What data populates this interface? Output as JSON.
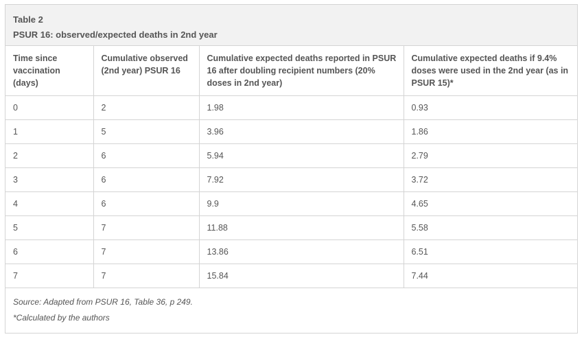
{
  "table": {
    "caption_line1": "Table 2",
    "caption_line2": "PSUR 16: observed/expected deaths in 2nd year",
    "headers": [
      "Time since vaccination (days)",
      "Cumulative observed (2nd year) PSUR 16",
      "Cumulative expected deaths reported in PSUR 16 after doubling recipient numbers (20% doses in 2nd year)",
      "Cumulative expected deaths if 9.4% doses were used in the 2nd year (as in PSUR 15)*"
    ],
    "rows": [
      [
        "0",
        "2",
        "1.98",
        "0.93"
      ],
      [
        "1",
        "5",
        "3.96",
        "1.86"
      ],
      [
        "2",
        "6",
        "5.94",
        "2.79"
      ],
      [
        "3",
        "6",
        "7.92",
        "3.72"
      ],
      [
        "4",
        "6",
        "9.9",
        "4.65"
      ],
      [
        "5",
        "7",
        "11.88",
        "5.58"
      ],
      [
        "6",
        "7",
        "13.86",
        "6.51"
      ],
      [
        "7",
        "7",
        "15.84",
        "7.44"
      ]
    ],
    "source_note": "Source: Adapted from PSUR 16, Table 36, p 249.",
    "footnote": "*Calculated by the authors"
  }
}
